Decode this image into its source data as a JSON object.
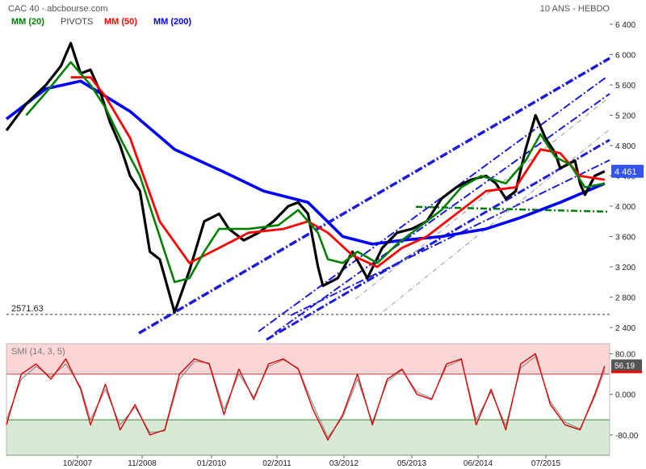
{
  "header": {
    "title": "CAC 40 - abcbourse.com",
    "period": "10 ANS - HEBDO"
  },
  "legend": [
    {
      "label": "MM (20)",
      "color": "#008000"
    },
    {
      "label": "PIVOTS",
      "color": "#444444"
    },
    {
      "label": "MM (50)",
      "color": "#ff0000"
    },
    {
      "label": "MM (200)",
      "color": "#0000ff"
    }
  ],
  "chart_data": [
    {
      "type": "line",
      "title": "CAC 40 - abcbourse.com",
      "subtitle": "10 ANS - HEBDO",
      "x_tick_labels": [
        "10/2007",
        "11/2008",
        "01/2010",
        "02/2011",
        "03/2012",
        "05/2013",
        "06/2014",
        "07/2015"
      ],
      "y_tick_labels": [
        "6 400",
        "6 000",
        "5 600",
        "5 200",
        "4 800",
        "4 400",
        "4 000",
        "3 600",
        "3 200",
        "2 800",
        "2 400"
      ],
      "ylim": [
        2400,
        6400
      ],
      "grid": false,
      "legend_position": "top-left",
      "last_value_label": "4 461",
      "last_value": 4461,
      "support_label": "2571.63",
      "support_value": 2571.63,
      "pivot_level": 3960,
      "series": [
        {
          "name": "CAC 40",
          "color": "#000000",
          "x": [
            "2006-05",
            "2006-09",
            "2007-01",
            "2007-04",
            "2007-06",
            "2007-08",
            "2007-10",
            "2007-12",
            "2008-02",
            "2008-04",
            "2008-06",
            "2008-08",
            "2008-10",
            "2008-12",
            "2009-03",
            "2009-06",
            "2009-09",
            "2009-12",
            "2010-02",
            "2010-05",
            "2010-08",
            "2010-11",
            "2011-02",
            "2011-04",
            "2011-06",
            "2011-08",
            "2011-09",
            "2011-12",
            "2012-03",
            "2012-06",
            "2012-09",
            "2012-12",
            "2013-03",
            "2013-06",
            "2013-09",
            "2013-12",
            "2014-03",
            "2014-06",
            "2014-08",
            "2014-10",
            "2014-12",
            "2015-02",
            "2015-04",
            "2015-06",
            "2015-08",
            "2015-09",
            "2015-12",
            "2016-01",
            "2016-02",
            "2016-04",
            "2016-06"
          ],
          "y": [
            5000,
            5350,
            5600,
            5850,
            6150,
            5750,
            5800,
            5500,
            5100,
            4800,
            4400,
            4200,
            3400,
            3300,
            2600,
            3150,
            3800,
            3900,
            3700,
            3550,
            3650,
            3800,
            4000,
            4050,
            3900,
            3200,
            2950,
            3050,
            3400,
            3050,
            3450,
            3650,
            3700,
            3800,
            4100,
            4250,
            4350,
            4400,
            4300,
            4100,
            4200,
            4750,
            5200,
            4900,
            4700,
            4500,
            4600,
            4300,
            4150,
            4400,
            4461
          ]
        },
        {
          "name": "MM (20)",
          "color": "#008000",
          "x": [
            "2006-09",
            "2007-01",
            "2007-06",
            "2007-10",
            "2008-01",
            "2008-04",
            "2008-08",
            "2008-12",
            "2009-03",
            "2009-06",
            "2009-09",
            "2009-12",
            "2010-06",
            "2010-12",
            "2011-04",
            "2011-08",
            "2011-10",
            "2012-01",
            "2012-04",
            "2012-08",
            "2012-12",
            "2013-04",
            "2013-09",
            "2014-01",
            "2014-05",
            "2014-10",
            "2015-02",
            "2015-05",
            "2015-08",
            "2015-11",
            "2016-02",
            "2016-06"
          ],
          "y": [
            5200,
            5500,
            5900,
            5600,
            5300,
            4900,
            4400,
            3600,
            3000,
            3050,
            3400,
            3700,
            3700,
            3750,
            3950,
            3650,
            3300,
            3250,
            3400,
            3250,
            3500,
            3700,
            3950,
            4250,
            4400,
            4300,
            4600,
            4950,
            4650,
            4550,
            4250,
            4300
          ]
        },
        {
          "name": "MM (50)",
          "color": "#ff0000",
          "x": [
            "2007-06",
            "2007-10",
            "2008-01",
            "2008-06",
            "2008-12",
            "2009-06",
            "2009-12",
            "2010-06",
            "2011-01",
            "2011-06",
            "2011-10",
            "2012-03",
            "2012-08",
            "2013-01",
            "2013-06",
            "2014-01",
            "2014-06",
            "2014-12",
            "2015-05",
            "2015-09",
            "2016-01",
            "2016-06"
          ],
          "y": [
            5700,
            5700,
            5450,
            4900,
            3800,
            3250,
            3450,
            3650,
            3700,
            3800,
            3650,
            3350,
            3200,
            3450,
            3600,
            3950,
            4200,
            4250,
            4750,
            4700,
            4400,
            4350
          ]
        },
        {
          "name": "MM (200)",
          "color": "#0000ff",
          "x": [
            "2006-05",
            "2007-01",
            "2007-08",
            "2008-06",
            "2009-03",
            "2010-01",
            "2010-09",
            "2011-06",
            "2012-01",
            "2012-07",
            "2013-01",
            "2013-09",
            "2014-06",
            "2015-01",
            "2015-09",
            "2016-06"
          ],
          "y": [
            5150,
            5550,
            5650,
            5250,
            4750,
            4450,
            4200,
            4050,
            3600,
            3500,
            3550,
            3600,
            3700,
            3850,
            4050,
            4300
          ]
        }
      ]
    },
    {
      "type": "line",
      "title": "SMI (14, 3, 5)",
      "y_tick_labels": [
        "80.00",
        "0.000",
        "-80.00"
      ],
      "ylim": [
        -120,
        100
      ],
      "overbought": 40,
      "oversold": -50,
      "last_value_label": "56.19",
      "last_value": 56.19,
      "series": [
        {
          "name": "SMI",
          "color": "#e00000",
          "x": [
            "2006-05",
            "2006-08",
            "2006-11",
            "2007-02",
            "2007-05",
            "2007-08",
            "2007-10",
            "2008-01",
            "2008-04",
            "2008-07",
            "2008-10",
            "2009-01",
            "2009-04",
            "2009-07",
            "2009-10",
            "2010-01",
            "2010-04",
            "2010-07",
            "2010-10",
            "2011-01",
            "2011-04",
            "2011-07",
            "2011-10",
            "2012-01",
            "2012-04",
            "2012-07",
            "2012-10",
            "2013-01",
            "2013-04",
            "2013-07",
            "2013-10",
            "2014-01",
            "2014-04",
            "2014-07",
            "2014-10",
            "2015-01",
            "2015-04",
            "2015-07",
            "2015-10",
            "2016-01",
            "2016-04",
            "2016-06"
          ],
          "y": [
            -60,
            40,
            60,
            30,
            70,
            10,
            -60,
            20,
            -70,
            -20,
            -80,
            -70,
            40,
            70,
            60,
            -40,
            50,
            -10,
            60,
            70,
            50,
            -30,
            -90,
            -40,
            40,
            -60,
            30,
            50,
            0,
            -10,
            60,
            70,
            -60,
            10,
            -70,
            60,
            80,
            -20,
            -60,
            -70,
            0,
            56
          ]
        },
        {
          "name": "Signal",
          "color": "#888888",
          "x": [
            "2006-05",
            "2006-08",
            "2006-11",
            "2007-02",
            "2007-05",
            "2007-08",
            "2007-10",
            "2008-01",
            "2008-04",
            "2008-07",
            "2008-10",
            "2009-01",
            "2009-04",
            "2009-07",
            "2009-10",
            "2010-01",
            "2010-04",
            "2010-07",
            "2010-10",
            "2011-01",
            "2011-04",
            "2011-07",
            "2011-10",
            "2012-01",
            "2012-04",
            "2012-07",
            "2012-10",
            "2013-01",
            "2013-04",
            "2013-07",
            "2013-10",
            "2014-01",
            "2014-04",
            "2014-07",
            "2014-10",
            "2015-01",
            "2015-04",
            "2015-07",
            "2015-10",
            "2016-01",
            "2016-04",
            "2016-06"
          ],
          "y": [
            -50,
            30,
            55,
            35,
            60,
            15,
            -50,
            10,
            -60,
            -25,
            -75,
            -72,
            30,
            65,
            62,
            -30,
            40,
            -5,
            55,
            68,
            52,
            -20,
            -85,
            -45,
            30,
            -55,
            25,
            48,
            5,
            -8,
            55,
            68,
            -50,
            5,
            -62,
            52,
            75,
            -15,
            -55,
            -68,
            -5,
            48
          ]
        }
      ]
    }
  ]
}
